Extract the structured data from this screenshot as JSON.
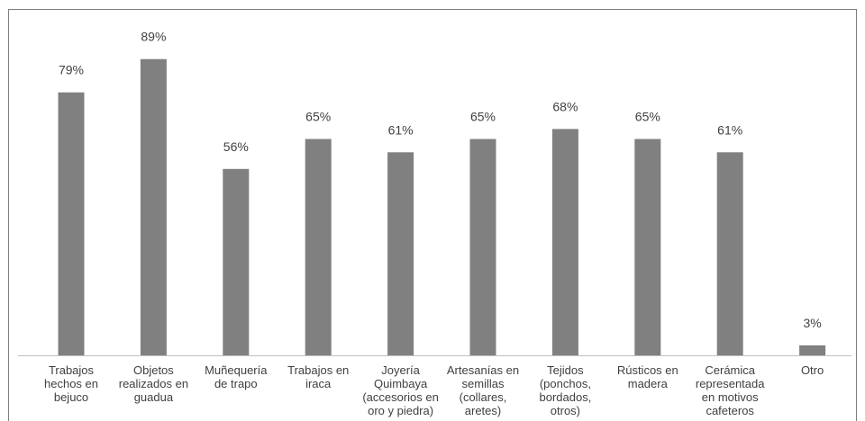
{
  "chart_data": {
    "type": "bar",
    "categories": [
      [
        "Trabajos",
        "hechos en",
        "bejuco"
      ],
      [
        "Objetos",
        "realizados en",
        "guadua"
      ],
      [
        "Muñequería",
        "de trapo"
      ],
      [
        "Trabajos en",
        "iraca"
      ],
      [
        "Joyería",
        "Quimbaya",
        "(accesorios en",
        "oro y piedra)"
      ],
      [
        "Artesanías en",
        "semillas",
        "(collares,",
        "aretes)"
      ],
      [
        "Tejidos",
        "(ponchos,",
        "bordados,",
        "otros)"
      ],
      [
        "Rústicos en",
        "madera"
      ],
      [
        "Cerámica",
        "representada",
        "en motivos",
        "cafeteros"
      ],
      [
        "Otro"
      ]
    ],
    "values": [
      79,
      89,
      56,
      65,
      61,
      65,
      68,
      65,
      61,
      3
    ],
    "data_labels": [
      "79%",
      "89%",
      "56%",
      "65%",
      "61%",
      "65%",
      "68%",
      "65%",
      "61%",
      "3%"
    ],
    "ylim": [
      0,
      100
    ],
    "grid": false,
    "legend": "none",
    "bar_color": "#808080",
    "axis_color": "#bfbfbf",
    "label_color": "#404040"
  }
}
